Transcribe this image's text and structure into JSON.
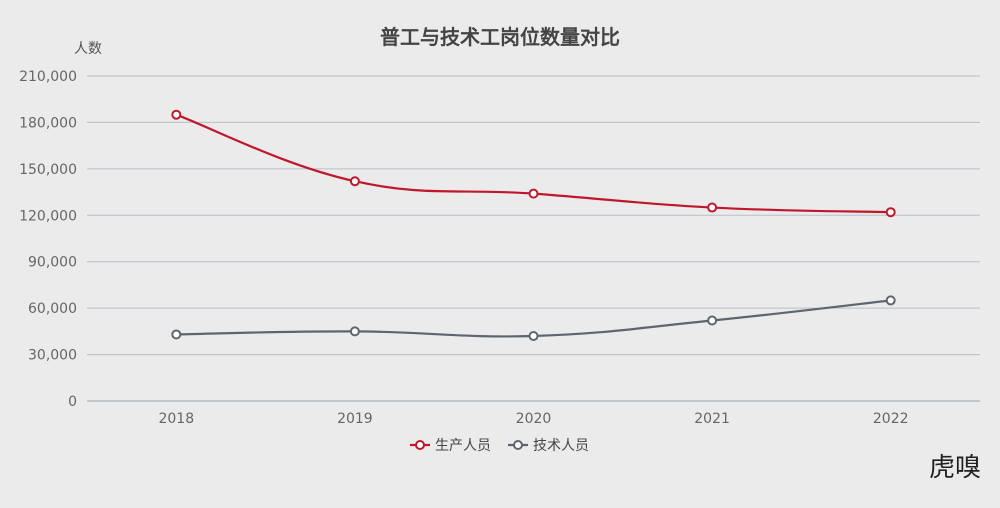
{
  "chart_data": {
    "type": "line",
    "title": "普工与技术工岗位数量对比",
    "ylabel": "人数",
    "xlabel": "",
    "categories": [
      "2018",
      "2019",
      "2020",
      "2021",
      "2022"
    ],
    "ylim": [
      0,
      210000
    ],
    "yticks": [
      0,
      30000,
      60000,
      90000,
      120000,
      150000,
      180000,
      210000
    ],
    "ytick_labels": [
      "0",
      "30,000",
      "60,000",
      "90,000",
      "120,000",
      "150,000",
      "180,000",
      "210,000"
    ],
    "grid": true,
    "legend_position": "bottom-center",
    "smooth": true,
    "series": [
      {
        "name": "生产人员",
        "color": "#c0172d",
        "values": [
          185000,
          142000,
          134000,
          125000,
          122000
        ]
      },
      {
        "name": "技术人员",
        "color": "#5f6570",
        "values": [
          43000,
          45000,
          42000,
          52000,
          65000
        ]
      }
    ]
  },
  "watermark": {
    "text": "虎嗅"
  }
}
